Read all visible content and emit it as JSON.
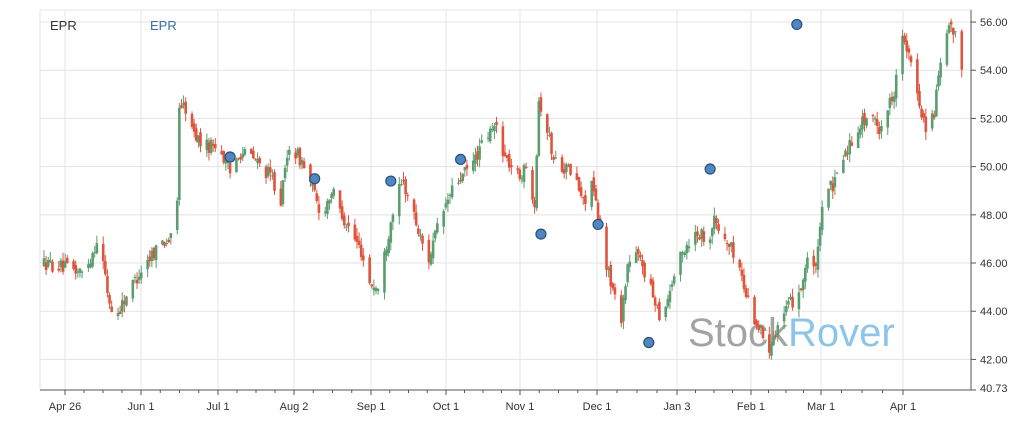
{
  "legend": {
    "primary": "EPR",
    "secondary": "EPR"
  },
  "watermark": {
    "part1": "Stock",
    "part2": "Rover"
  },
  "colors": {
    "up": "#5a9e6f",
    "down": "#e0533c",
    "marker": "#4f87c0",
    "grid": "#e3e3e3",
    "axis": "#555555",
    "legend_secondary": "#3a6ea5",
    "watermark_gray": "#9a9a9a",
    "watermark_blue": "#7fbfe8"
  },
  "chart_data": {
    "type": "candlestick",
    "x_ticks": [
      "Apr 26",
      "Jun 1",
      "Jul 1",
      "Aug 2",
      "Sep 1",
      "Oct 1",
      "Nov 1",
      "Dec 1",
      "Jan 3",
      "Feb 1",
      "Mar 1",
      "Apr 1"
    ],
    "y_ticks": [
      42,
      44,
      46,
      48,
      50,
      52,
      54,
      56
    ],
    "y_min_label": "40.73",
    "ylim": [
      40.73,
      56.5
    ],
    "grid": true,
    "legend_position": "top-left",
    "price_path": [
      [
        0,
        46.0
      ],
      [
        10,
        45.8
      ],
      [
        18,
        45.6
      ],
      [
        22,
        46.2
      ],
      [
        26,
        47.2
      ],
      [
        30,
        44.8
      ],
      [
        33,
        43.6
      ],
      [
        38,
        44.5
      ],
      [
        45,
        45.6
      ],
      [
        52,
        46.5
      ],
      [
        56,
        46.9
      ],
      [
        61,
        47.0
      ],
      [
        63,
        48.5
      ],
      [
        64,
        52.6
      ],
      [
        67,
        52.4
      ],
      [
        70,
        51.5
      ],
      [
        76,
        50.8
      ],
      [
        82,
        51.0
      ],
      [
        88,
        49.7
      ],
      [
        92,
        50.6
      ],
      [
        97,
        50.5
      ],
      [
        103,
        50.0
      ],
      [
        108,
        49.5
      ],
      [
        112,
        48.6
      ],
      [
        116,
        50.9
      ],
      [
        122,
        50.2
      ],
      [
        127,
        49.1
      ],
      [
        131,
        47.9
      ],
      [
        136,
        49.0
      ],
      [
        140,
        48.2
      ],
      [
        145,
        47.3
      ],
      [
        150,
        46.5
      ],
      [
        154,
        45.2
      ],
      [
        158,
        44.9
      ],
      [
        162,
        46.8
      ],
      [
        166,
        48.7
      ],
      [
        170,
        49.3
      ],
      [
        174,
        48.3
      ],
      [
        178,
        47.0
      ],
      [
        182,
        46.2
      ],
      [
        186,
        47.4
      ],
      [
        190,
        48.4
      ],
      [
        194,
        49.2
      ],
      [
        198,
        49.6
      ],
      [
        203,
        50.2
      ],
      [
        209,
        51.2
      ],
      [
        214,
        51.7
      ],
      [
        218,
        50.4
      ],
      [
        224,
        49.6
      ],
      [
        228,
        49.9
      ],
      [
        232,
        48.6
      ],
      [
        234,
        52.8
      ],
      [
        237,
        51.9
      ],
      [
        241,
        50.3
      ],
      [
        246,
        50.0
      ],
      [
        251,
        49.6
      ],
      [
        255,
        48.5
      ],
      [
        259,
        49.4
      ],
      [
        262,
        47.8
      ],
      [
        265,
        46.4
      ],
      [
        268,
        45.2
      ],
      [
        271,
        44.2
      ],
      [
        273,
        43.8
      ],
      [
        276,
        45.9
      ],
      [
        279,
        46.4
      ],
      [
        283,
        46.0
      ],
      [
        286,
        45.0
      ],
      [
        289,
        44.5
      ],
      [
        292,
        43.6
      ],
      [
        295,
        44.6
      ],
      [
        299,
        45.8
      ],
      [
        304,
        46.8
      ],
      [
        309,
        47.3
      ],
      [
        314,
        47.0
      ],
      [
        317,
        47.8
      ],
      [
        320,
        47.2
      ],
      [
        324,
        46.7
      ],
      [
        328,
        46.2
      ],
      [
        331,
        45.0
      ],
      [
        334,
        44.2
      ],
      [
        337,
        43.5
      ],
      [
        340,
        43.0
      ],
      [
        342,
        42.2
      ],
      [
        344,
        42.9
      ],
      [
        348,
        43.6
      ],
      [
        353,
        44.3
      ],
      [
        358,
        45.0
      ],
      [
        362,
        46.6
      ],
      [
        364,
        45.6
      ],
      [
        366,
        46.4
      ],
      [
        368,
        48.1
      ],
      [
        370,
        49.6
      ],
      [
        373,
        48.9
      ],
      [
        376,
        50.2
      ],
      [
        381,
        50.9
      ],
      [
        385,
        51.7
      ],
      [
        390,
        52.1
      ],
      [
        395,
        51.6
      ],
      [
        399,
        52.4
      ],
      [
        402,
        53.2
      ],
      [
        405,
        55.6
      ],
      [
        409,
        54.5
      ],
      [
        412,
        53.4
      ],
      [
        415,
        52.3
      ],
      [
        418,
        51.4
      ],
      [
        421,
        52.3
      ],
      [
        423,
        53.6
      ],
      [
        426,
        55.2
      ],
      [
        429,
        55.8
      ],
      [
        432,
        55.1
      ],
      [
        434,
        54.2
      ]
    ]
  }
}
